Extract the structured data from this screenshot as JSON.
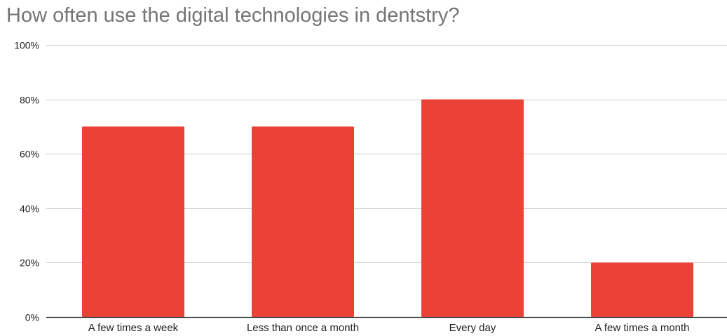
{
  "chart_data": {
    "type": "bar",
    "title": "How often use the digital technologies in dentstry?",
    "xlabel": "",
    "ylabel": "",
    "categories": [
      "A few times a week",
      "Less than once a month",
      "Every day",
      "A few times a month"
    ],
    "series": [
      {
        "values": [
          70,
          70,
          80,
          20
        ]
      }
    ],
    "ylim": [
      0,
      100
    ],
    "yticks": [
      0,
      20,
      40,
      60,
      80,
      100
    ],
    "ytick_labels": [
      "0%",
      "20%",
      "40%",
      "60%",
      "80%",
      "100%"
    ],
    "grid": true,
    "legend": "none",
    "colors": {
      "bar": "#ea4335",
      "grid": "#cccccc",
      "axis": "#333333",
      "title": "#757575"
    }
  }
}
